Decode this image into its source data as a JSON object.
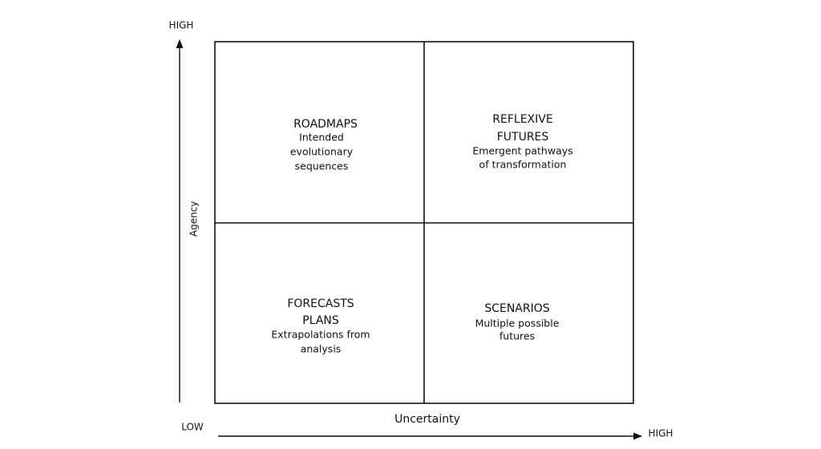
{
  "y_axis": {
    "label": "Agency",
    "high": "HIGH"
  },
  "x_axis": {
    "label": "Uncertainty",
    "low": "LOW",
    "high": "HIGH"
  },
  "quadrants": [
    {
      "title": [
        "ROADMAPS"
      ],
      "description": [
        "Intended",
        "evolutionary",
        "sequences"
      ]
    },
    {
      "title": [
        "REFLEXIVE",
        "FUTURES"
      ],
      "description": [
        "Emergent pathways",
        "of transformation"
      ]
    },
    {
      "title": [
        "FORECASTS",
        "PLANS"
      ],
      "description": [
        "Extrapolations from",
        "analysis"
      ]
    },
    {
      "title": [
        "SCENARIOS"
      ],
      "description": [
        "Multiple possible",
        "futures"
      ]
    }
  ]
}
